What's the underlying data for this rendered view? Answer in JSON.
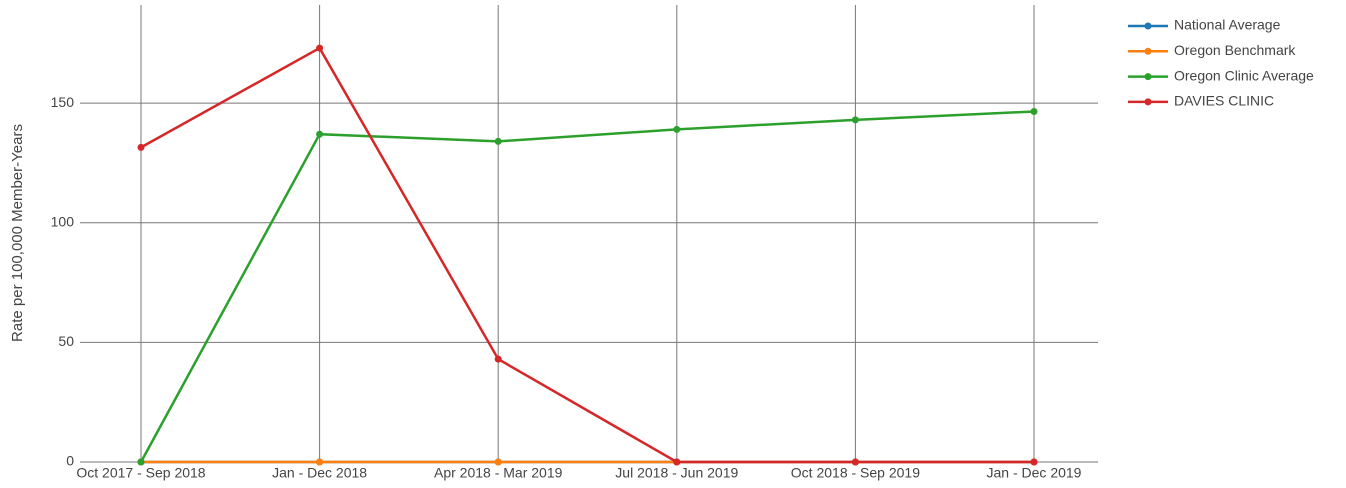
{
  "chart_data": {
    "type": "line",
    "y_label": "Rate per 100,000 Member-Years",
    "categories": [
      "Oct 2017 - Sep 2018",
      "Jan - Dec 2018",
      "Apr 2018 - Mar 2019",
      "Jul 2018 - Jun 2019",
      "Oct 2018 - Sep 2019",
      "Jan - Dec 2019"
    ],
    "series": [
      {
        "name": "National Average",
        "color": "#1f77b4",
        "values": [
          0,
          0,
          0,
          0,
          0,
          0
        ]
      },
      {
        "name": "Oregon Benchmark",
        "color": "#ff7f0e",
        "values": [
          0,
          0,
          0,
          0,
          0,
          0
        ]
      },
      {
        "name": "Oregon Clinic Average",
        "color": "#2ca02c",
        "values": [
          0,
          137,
          134,
          139,
          143,
          146.5
        ]
      },
      {
        "name": "DAVIES CLINIC",
        "color": "#d62728",
        "values": [
          131.5,
          173,
          43,
          0,
          0,
          0
        ]
      }
    ],
    "ylim": [
      0,
      191
    ],
    "yticks": [
      0,
      50,
      100,
      150
    ],
    "grid": true,
    "legend": "right"
  }
}
